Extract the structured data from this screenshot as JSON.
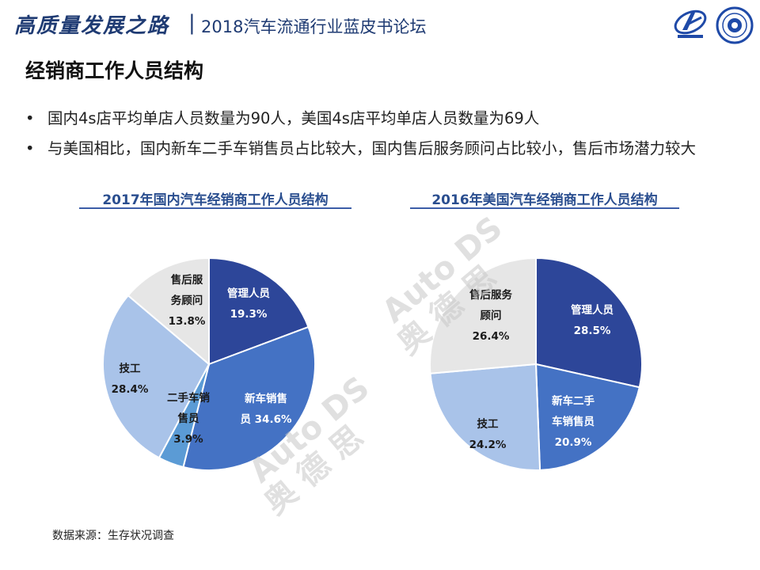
{
  "header": {
    "calligraphy": "高质量发展之路",
    "separator": "|",
    "subtitle": "2018汽车流通行业蓝皮书论坛"
  },
  "page_title": "经销商工作人员结构",
  "bullets": [
    {
      "marker": "•",
      "text": "国内4s店平均单店人员数量为90人，美国4s店平均单店人员数量为69人"
    },
    {
      "marker": "•",
      "text": "与美国相比，国内新车二手车销售员占比较大，国内售后服务顾问占比较小，售后市场潜力较大"
    }
  ],
  "watermark": {
    "latin": "Auto DS",
    "cn": "奥 德 思"
  },
  "source_note": "数据来源：生存状况调查",
  "colors": {
    "dark_blue": "#2d4699",
    "mid_blue": "#4472c4",
    "light_blue": "#a9c3e9",
    "accent_blue": "#5b9bd5",
    "gray": "#e6e6e6",
    "title_blue": "#2a4e8f"
  },
  "chart_data": [
    {
      "type": "pie",
      "title": "2017年国内汽车经销商工作人员结构",
      "slices": [
        {
          "label_lines": [
            "管理人员"
          ],
          "value": 19.3,
          "value_label": "19.3%",
          "color": "#2d4699"
        },
        {
          "label_lines": [
            "新车销售",
            "员 34.6%"
          ],
          "value": 34.6,
          "value_label": "",
          "color": "#4472c4"
        },
        {
          "label_lines": [
            "二手车销",
            "售员"
          ],
          "value": 3.9,
          "value_label": "3.9%",
          "color": "#5b9bd5"
        },
        {
          "label_lines": [
            "技工"
          ],
          "value": 28.4,
          "value_label": "28.4%",
          "color": "#a9c3e9"
        },
        {
          "label_lines": [
            "售后服",
            "务顾问"
          ],
          "value": 13.8,
          "value_label": "13.8%",
          "color": "#e6e6e6"
        }
      ]
    },
    {
      "type": "pie",
      "title": "2016年美国汽车经销商工作人员结构",
      "slices": [
        {
          "label_lines": [
            "管理人员"
          ],
          "value": 28.5,
          "value_label": "28.5%",
          "color": "#2d4699"
        },
        {
          "label_lines": [
            "新车二手",
            "车销售员"
          ],
          "value": 20.9,
          "value_label": "20.9%",
          "color": "#4472c4"
        },
        {
          "label_lines": [
            "技工"
          ],
          "value": 24.2,
          "value_label": "24.2%",
          "color": "#a9c3e9"
        },
        {
          "label_lines": [
            "售后服务",
            "顾问"
          ],
          "value": 26.4,
          "value_label": "26.4%",
          "color": "#e6e6e6"
        }
      ]
    }
  ]
}
